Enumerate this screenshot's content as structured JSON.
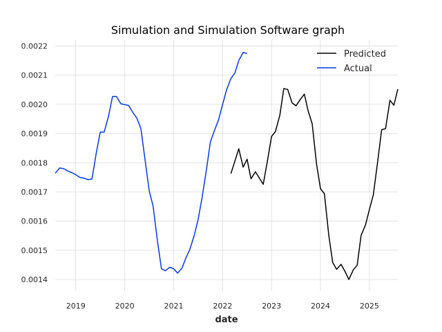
{
  "chart_data": {
    "type": "line",
    "title": "Simulation and Simulation Software graph",
    "xlabel": "date",
    "ylabel": "",
    "xlim": [
      2018.58,
      2025.58
    ],
    "ylim": [
      0.00136,
      0.00222
    ],
    "x_ticks": [
      2019,
      2020,
      2021,
      2022,
      2023,
      2024,
      2025
    ],
    "x_tick_labels": [
      "2019",
      "2020",
      "2021",
      "2022",
      "2023",
      "2024",
      "2025"
    ],
    "y_ticks": [
      0.0014,
      0.0015,
      0.0016,
      0.0017,
      0.0018,
      0.0019,
      0.002,
      0.0021,
      0.0022
    ],
    "y_tick_labels": [
      "0.0014",
      "0.0015",
      "0.0016",
      "0.0017",
      "0.0018",
      "0.0019",
      "0.0020",
      "0.0021",
      "0.0022"
    ],
    "grid": true,
    "legend_position": "top-right",
    "series": [
      {
        "name": "Predicted",
        "color": "#000000",
        "x": [
          2022.17,
          2022.25,
          2022.33,
          2022.42,
          2022.5,
          2022.58,
          2022.67,
          2022.75,
          2022.83,
          2022.92,
          2023.0,
          2023.08,
          2023.17,
          2023.25,
          2023.33,
          2023.42,
          2023.5,
          2023.58,
          2023.67,
          2023.75,
          2023.83,
          2023.92,
          2024.0,
          2024.08,
          2024.17,
          2024.25,
          2024.33,
          2024.42,
          2024.5,
          2024.58,
          2024.67,
          2024.75,
          2024.83,
          2024.92,
          2025.0,
          2025.08,
          2025.17,
          2025.25,
          2025.33,
          2025.42,
          2025.5,
          2025.58
        ],
        "y": [
          0.001763,
          0.001805,
          0.001848,
          0.001785,
          0.001812,
          0.001745,
          0.001769,
          0.001748,
          0.001726,
          0.00181,
          0.00189,
          0.001907,
          0.001963,
          0.002054,
          0.002051,
          0.002005,
          0.001995,
          0.002015,
          0.002035,
          0.001976,
          0.001934,
          0.001795,
          0.001711,
          0.001694,
          0.001551,
          0.001458,
          0.001435,
          0.001452,
          0.001428,
          0.0014,
          0.001433,
          0.001449,
          0.001551,
          0.001587,
          0.00164,
          0.00169,
          0.001806,
          0.001913,
          0.001917,
          0.002014,
          0.001997,
          0.002052
        ]
      },
      {
        "name": "Actual",
        "color": "#0039e6",
        "x": [
          2018.58,
          2018.67,
          2018.75,
          2018.83,
          2018.92,
          2019.0,
          2019.08,
          2019.17,
          2019.25,
          2019.33,
          2019.42,
          2019.5,
          2019.58,
          2019.67,
          2019.75,
          2019.83,
          2019.92,
          2020.0,
          2020.08,
          2020.17,
          2020.25,
          2020.33,
          2020.42,
          2020.5,
          2020.58,
          2020.67,
          2020.75,
          2020.83,
          2020.92,
          2021.0,
          2021.08,
          2021.17,
          2021.25,
          2021.33,
          2021.42,
          2021.5,
          2021.58,
          2021.67,
          2021.75,
          2021.83,
          2021.92,
          2022.0,
          2022.08,
          2022.17,
          2022.25,
          2022.33,
          2022.42,
          2022.5
        ],
        "y": [
          0.001764,
          0.001782,
          0.00178,
          0.001772,
          0.001766,
          0.001759,
          0.00175,
          0.001747,
          0.001742,
          0.001744,
          0.001835,
          0.001905,
          0.001905,
          0.00196,
          0.002027,
          0.002027,
          0.002002,
          0.001999,
          0.001996,
          0.001971,
          0.001952,
          0.001917,
          0.001804,
          0.001704,
          0.001651,
          0.00153,
          0.001437,
          0.00143,
          0.001442,
          0.001437,
          0.001422,
          0.001439,
          0.001474,
          0.001503,
          0.001551,
          0.001606,
          0.00168,
          0.001777,
          0.001871,
          0.001909,
          0.001948,
          0.002,
          0.002049,
          0.002089,
          0.002107,
          0.00215,
          0.002178,
          0.002174
        ]
      }
    ]
  }
}
